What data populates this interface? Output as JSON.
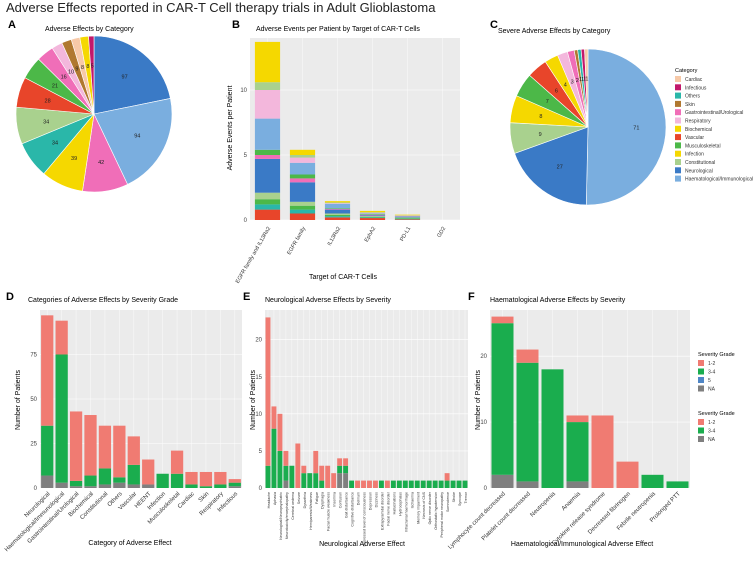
{
  "figure_title": "Adverse Effects reported in CAR-T Cell therapy trials in Adult Glioblastoma",
  "colors": {
    "Cardiac": "#f7c9a8",
    "Infectious": "#c2186b",
    "Others": "#2ab7a9",
    "Skin": "#b07830",
    "Gastrointestinal/Urological": "#f06eb8",
    "Respiratory": "#f3b7dc",
    "Biochemical": "#f5d800",
    "Vascular": "#e8452a",
    "Musculoskeletal": "#4cb848",
    "Infection": "#f5d800",
    "Constitutional": "#a9d18e",
    "Neurological": "#3a7ac6",
    "Haematological/Immunological": "#7aaedf",
    "HEENT": "#c9b48a",
    "grid_bg": "#ebebeb",
    "sev_12": "#f07b72",
    "sev_34": "#1aad4e",
    "sev_5": "#4f86c6",
    "sev_na": "#7f7f7f"
  },
  "chart_data": [
    {
      "id": "A",
      "type": "pie",
      "panel_label": "A",
      "title": "Adverse Effects by Category",
      "slices": [
        {
          "category": "Neurological",
          "value": 97,
          "label": "97"
        },
        {
          "category": "Haematological/Immunological",
          "value": 94,
          "label": "94"
        },
        {
          "category": "Gastrointestinal/Urological",
          "value": 42,
          "label": "42"
        },
        {
          "category": "Infection",
          "value": 39,
          "label": "39"
        },
        {
          "category": "Others",
          "value": 34,
          "label": "34"
        },
        {
          "category": "Constitutional",
          "value": 34,
          "label": "34"
        },
        {
          "category": "Vascular",
          "value": 28,
          "label": "28"
        },
        {
          "category": "Musculoskeletal",
          "value": 21,
          "label": "21"
        },
        {
          "category": "Gastrointestinal/Urological",
          "value": 16,
          "label": "16"
        },
        {
          "category": "Respiratory",
          "value": 10,
          "label": "10"
        },
        {
          "category": "Skin",
          "value": 9,
          "label": "9"
        },
        {
          "category": "Cardiac",
          "value": 8,
          "label": "8"
        },
        {
          "category": "Biochemical",
          "value": 8,
          "label": "8"
        },
        {
          "category": "Infectious",
          "value": 5,
          "label": "5"
        }
      ]
    },
    {
      "id": "B",
      "type": "bar",
      "stacked": true,
      "panel_label": "B",
      "title": "Adverse Events per Patient by Target of CAR-T Cells",
      "xlabel": "Target of CAR-T Cells",
      "ylabel": "Adverse Events per Patient",
      "ylim": [
        0,
        14
      ],
      "yticks": [
        0,
        5,
        10
      ],
      "categories": [
        "EGFR family and IL13Ra2",
        "EGFR family",
        "IL13Ra2",
        "EphA2",
        "PD-L1",
        "GD2"
      ],
      "series": [
        {
          "name": "Vascular",
          "values": [
            0.8,
            0.5,
            0.2,
            0.15,
            0.05,
            0
          ]
        },
        {
          "name": "Others",
          "values": [
            0.4,
            0.3,
            0.1,
            0.05,
            0.05,
            0
          ]
        },
        {
          "name": "Musculoskeletal",
          "values": [
            0.4,
            0.3,
            0.1,
            0.05,
            0.05,
            0
          ]
        },
        {
          "name": "Constitutional",
          "values": [
            0.5,
            0.3,
            0.1,
            0.05,
            0.05,
            0
          ]
        },
        {
          "name": "Neurological",
          "values": [
            2.6,
            1.5,
            0.3,
            0.05,
            0.05,
            0
          ]
        },
        {
          "name": "Gastrointestinal/Urological",
          "values": [
            0.3,
            0.3,
            0.05,
            0.05,
            0.02,
            0
          ]
        },
        {
          "name": "Musculoskeletal",
          "values": [
            0.4,
            0.3,
            0.05,
            0.05,
            0,
            0
          ]
        },
        {
          "name": "Haematological/Immunological",
          "values": [
            2.4,
            0.9,
            0.35,
            0.05,
            0.05,
            0
          ]
        },
        {
          "name": "Respiratory",
          "values": [
            2.2,
            0.4,
            0.05,
            0.05,
            0.02,
            0
          ]
        },
        {
          "name": "Constitutional",
          "values": [
            0.6,
            0.2,
            0.05,
            0.05,
            0.02,
            0
          ]
        },
        {
          "name": "Infection",
          "values": [
            3.1,
            0.4,
            0.1,
            0.1,
            0.05,
            0
          ]
        }
      ]
    },
    {
      "id": "C",
      "type": "pie",
      "panel_label": "C",
      "title": "Severe Adverse Effects by Category",
      "legend_title": "Category",
      "legend_position": "right",
      "legend_items": [
        "Cardiac",
        "Infectious",
        "Others",
        "Skin",
        "Gastrointestinal/Urological",
        "Respiratory",
        "Biochemical",
        "Vascular",
        "Musculoskeletal",
        "Infection",
        "Constitutional",
        "Neurological",
        "Haematological/Immunological"
      ],
      "slices": [
        {
          "category": "Haematological/Immunological",
          "value": 71,
          "label": "71"
        },
        {
          "category": "Neurological",
          "value": 27,
          "label": "27"
        },
        {
          "category": "Constitutional",
          "value": 9,
          "label": "9"
        },
        {
          "category": "Infection",
          "value": 8,
          "label": "8"
        },
        {
          "category": "Musculoskeletal",
          "value": 7,
          "label": "7"
        },
        {
          "category": "Vascular",
          "value": 6,
          "label": "6"
        },
        {
          "category": "Biochemical",
          "value": 4,
          "label": "4"
        },
        {
          "category": "Respiratory",
          "value": 3,
          "label": "3"
        },
        {
          "category": "Gastrointestinal/Urological",
          "value": 2,
          "label": "2"
        },
        {
          "category": "Skin",
          "value": 1,
          "label": "1"
        },
        {
          "category": "Others",
          "value": 1,
          "label": "1"
        },
        {
          "category": "Infectious",
          "value": 1,
          "label": "1"
        },
        {
          "category": "Cardiac",
          "value": 1,
          "label": "1"
        }
      ]
    },
    {
      "id": "D",
      "type": "bar",
      "stacked": true,
      "panel_label": "D",
      "title": "Categories of Adverse Effects by Severity Grade",
      "xlabel": "Category of Adverse Effect",
      "ylabel": "Number of Patients",
      "ylim": [
        0,
        100
      ],
      "yticks": [
        0,
        25,
        50,
        75
      ],
      "categories": [
        "Neurological",
        "Haematological/Immunological",
        "Gastrointestinal/Urological",
        "Biochemical",
        "Constitutional",
        "Others",
        "Vascular",
        "HEENT",
        "Infection",
        "Musculoskeletal",
        "Cardiac",
        "Skin",
        "Respiratory",
        "Infectious"
      ],
      "series": [
        {
          "name": "NA",
          "values": [
            7,
            3,
            1,
            1,
            2,
            3,
            2,
            2,
            0,
            0,
            0,
            0,
            0,
            1
          ]
        },
        {
          "name": "3-4",
          "values": [
            28,
            72,
            3,
            6,
            9,
            3,
            11,
            0,
            8,
            8,
            2,
            1,
            2,
            2
          ]
        },
        {
          "name": "1-2",
          "values": [
            62,
            19,
            39,
            34,
            24,
            29,
            16,
            14,
            0,
            13,
            7,
            8,
            7,
            2
          ]
        }
      ]
    },
    {
      "id": "E",
      "type": "bar",
      "stacked": true,
      "panel_label": "E",
      "title": "Neurological Adverse Effects by Severity",
      "xlabel": "Neurological Adverse Effect",
      "ylabel": "Number of Patients",
      "ylim": [
        0,
        24
      ],
      "yticks": [
        0,
        5,
        10,
        15,
        20
      ],
      "categories": [
        "Headache",
        "Aphasia",
        "Neurological/Neuropsychiatric",
        "Neurotoxicity/encephalopathy",
        "Cerebral oedema",
        "Seizure",
        "Dysarthria",
        "Hemiparesis/Weakness",
        "Fatigue",
        "Dysphagia",
        "Facial muscle weakness",
        "Insomnia",
        "Confusion",
        "Gait disturbance",
        "Cognitive disturbance",
        "Delirium",
        "Depressed level of consciousness",
        "Depression",
        "Dizziness",
        "Extrapyramidal disorder",
        "Facial nerve disorder",
        "Hallucinations",
        "Hydrocephalus",
        "Intracranial haemorrhage",
        "Ischaemia",
        "Memory impairment",
        "Necrosis of CNS",
        "Optic nerve disorder",
        "Orthostatic hypotension",
        "Peripheral motor neuropathy",
        "Somnolence",
        "Stroke",
        "Syncope",
        "Tremor"
      ],
      "series": [
        {
          "name": "NA",
          "values": [
            0,
            0,
            0,
            1,
            0,
            0,
            0,
            0,
            0,
            0,
            0,
            0,
            2,
            2,
            0,
            0,
            0,
            0,
            0,
            0,
            0,
            0,
            0,
            0,
            0,
            0,
            0,
            0,
            0,
            0,
            0,
            0,
            0,
            0
          ]
        },
        {
          "name": "3-4",
          "values": [
            3,
            8,
            5,
            2,
            3,
            0,
            2,
            2,
            2,
            1,
            0,
            0,
            1,
            1,
            1,
            0,
            0,
            0,
            0,
            1,
            0,
            1,
            1,
            1,
            1,
            1,
            1,
            1,
            1,
            1,
            1,
            1,
            1,
            1
          ]
        },
        {
          "name": "1-2",
          "values": [
            20,
            3,
            5,
            2,
            0,
            6,
            1,
            0,
            3,
            2,
            3,
            2,
            1,
            1,
            0,
            1,
            1,
            1,
            1,
            0,
            1,
            0,
            0,
            0,
            0,
            0,
            0,
            0,
            0,
            0,
            1,
            0,
            0,
            0
          ]
        }
      ]
    },
    {
      "id": "F",
      "type": "bar",
      "stacked": true,
      "panel_label": "F",
      "title": "Haematological Adverse Effects by Severity",
      "xlabel": "Haematological/Immunological Adverse Effect",
      "ylabel": "Number of Patients",
      "ylim": [
        0,
        27
      ],
      "yticks": [
        0,
        10,
        20
      ],
      "categories": [
        "Lymphocyte count decreased",
        "Platelet count decreased",
        "Neutropenia",
        "Anaemia",
        "Cytokine release syndrome",
        "Decreased fibrinogen",
        "Febrile neutropenia",
        "Prolonged PTT"
      ],
      "series": [
        {
          "name": "NA",
          "values": [
            2,
            1,
            0,
            1,
            0,
            0,
            0,
            0
          ]
        },
        {
          "name": "3-4",
          "values": [
            23,
            18,
            18,
            9,
            0,
            0,
            2,
            1
          ]
        },
        {
          "name": "1-2",
          "values": [
            1,
            2,
            0,
            1,
            11,
            4,
            0,
            0
          ]
        }
      ]
    }
  ],
  "legend_severity_1": {
    "title": "Severity Grade",
    "items": [
      "1-2",
      "3-4",
      "5",
      "NA"
    ]
  },
  "legend_severity_2": {
    "title": "Severity Grade",
    "items": [
      "1-2",
      "3-4",
      "NA"
    ]
  }
}
